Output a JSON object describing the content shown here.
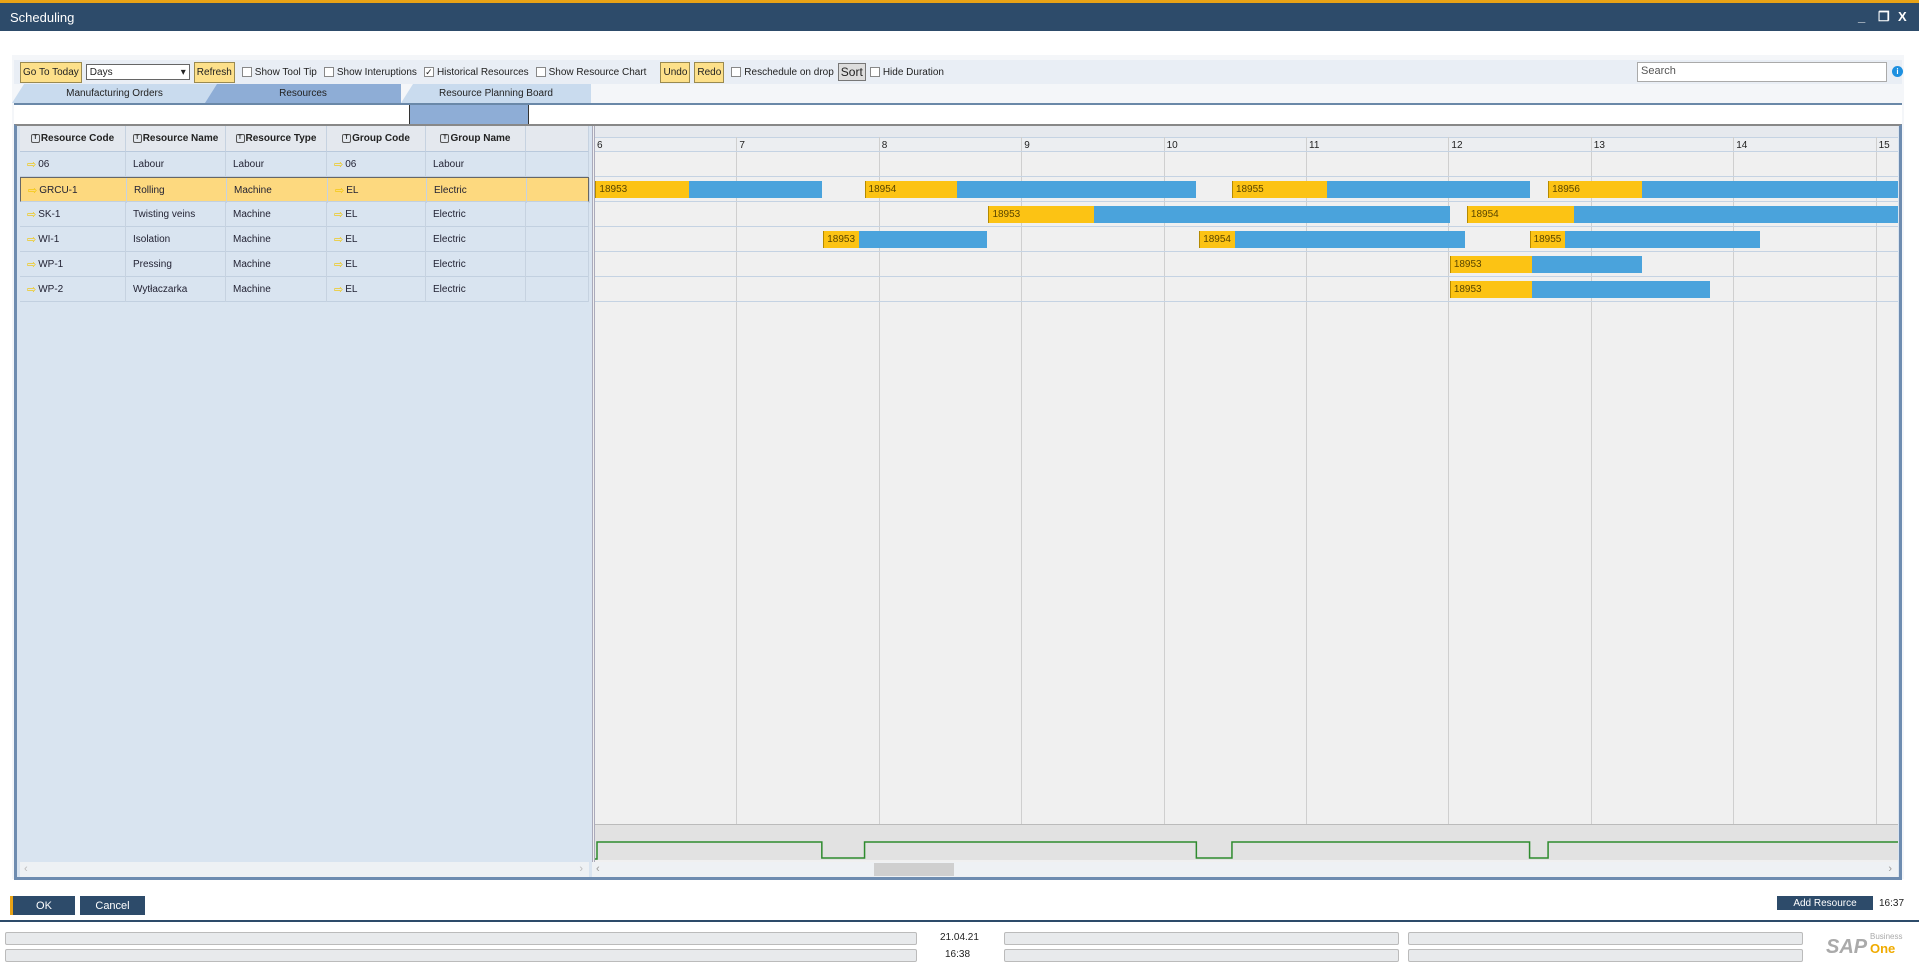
{
  "window": {
    "title": "Scheduling",
    "minimize": "_",
    "restore": "❐",
    "close": "X"
  },
  "toolbar": {
    "go_to_today": "Go To Today",
    "view_select": "Days",
    "refresh": "Refresh",
    "checkboxes": [
      {
        "label": "Show Tool Tip",
        "checked": false
      },
      {
        "label": "Show Interuptions",
        "checked": false
      },
      {
        "label": "Historical Resources",
        "checked": true
      },
      {
        "label": "Show Resource Chart",
        "checked": false
      }
    ],
    "undo": "Undo",
    "redo": "Redo",
    "reschedule": {
      "label": "Reschedule on drop",
      "checked": false
    },
    "sort": "Sort",
    "hide_duration": {
      "label": "Hide Duration",
      "checked": false
    },
    "search_placeholder": "Search",
    "info_icon": "i"
  },
  "tabs": [
    {
      "label": "Manufacturing Orders",
      "active": false
    },
    {
      "label": "Resources",
      "active": true
    },
    {
      "label": "Resource Planning Board",
      "active": false
    }
  ],
  "grid": {
    "columns": [
      "Resource Code",
      "Resource Name",
      "Resource Type",
      "Group Code",
      "Group Name"
    ],
    "rows": [
      {
        "code": "06",
        "name": "Labour",
        "type": "Labour",
        "group_code": "06",
        "group_name": "Labour",
        "selected": false
      },
      {
        "code": "GRCU-1",
        "name": "Rolling",
        "type": "Machine",
        "group_code": "EL",
        "group_name": "Electric",
        "selected": true
      },
      {
        "code": "SK-1",
        "name": "Twisting veins",
        "type": "Machine",
        "group_code": "EL",
        "group_name": "Electric",
        "selected": false
      },
      {
        "code": "WI-1",
        "name": "Isolation",
        "type": "Machine",
        "group_code": "EL",
        "group_name": "Electric",
        "selected": false
      },
      {
        "code": "WP-1",
        "name": "Pressing",
        "type": "Machine",
        "group_code": "EL",
        "group_name": "Electric",
        "selected": false
      },
      {
        "code": "WP-2",
        "name": "Wytłaczarka",
        "type": "Machine",
        "group_code": "EL",
        "group_name": "Electric",
        "selected": false
      }
    ]
  },
  "gantt": {
    "days": [
      "6",
      "7",
      "8",
      "9",
      "10",
      "11",
      "12",
      "13",
      "14",
      "15"
    ],
    "colors": {
      "setup": "#fcc314",
      "run": "#4aa3dc",
      "capacity": "#2e8b2e"
    },
    "bars": [
      {
        "row": 1,
        "order": "18953",
        "start": 6.01,
        "setup_end": 6.67,
        "end": 7.6
      },
      {
        "row": 1,
        "order": "18954",
        "start": 7.9,
        "setup_end": 8.55,
        "end": 10.23
      },
      {
        "row": 1,
        "order": "18955",
        "start": 10.48,
        "setup_end": 11.15,
        "end": 12.57
      },
      {
        "row": 1,
        "order": "18956",
        "start": 12.7,
        "setup_end": 13.36,
        "end": 15.2
      },
      {
        "row": 2,
        "order": "18953",
        "start": 8.77,
        "setup_end": 9.51,
        "end": 12.01
      },
      {
        "row": 2,
        "order": "18954",
        "start": 12.13,
        "setup_end": 12.88,
        "end": 15.2
      },
      {
        "row": 3,
        "order": "18953",
        "start": 7.61,
        "setup_end": 7.86,
        "end": 8.76
      },
      {
        "row": 3,
        "order": "18954",
        "start": 10.25,
        "setup_end": 10.5,
        "end": 12.12
      },
      {
        "row": 3,
        "order": "18955",
        "start": 12.57,
        "setup_end": 12.82,
        "end": 14.19
      },
      {
        "row": 4,
        "order": "18953",
        "start": 12.01,
        "setup_end": 12.59,
        "end": 13.36
      },
      {
        "row": 5,
        "order": "18953",
        "start": 12.01,
        "setup_end": 12.59,
        "end": 13.84
      }
    ],
    "capacity_dips": [
      [
        7.6,
        7.9
      ],
      [
        10.23,
        10.48
      ],
      [
        12.57,
        12.7
      ]
    ]
  },
  "footer": {
    "ok": "OK",
    "cancel": "Cancel",
    "add_resource": "Add Resource",
    "time": "16:37"
  },
  "statusbar": {
    "date": "21.04.21",
    "time": "16:38",
    "logo": "SAP Business One"
  }
}
